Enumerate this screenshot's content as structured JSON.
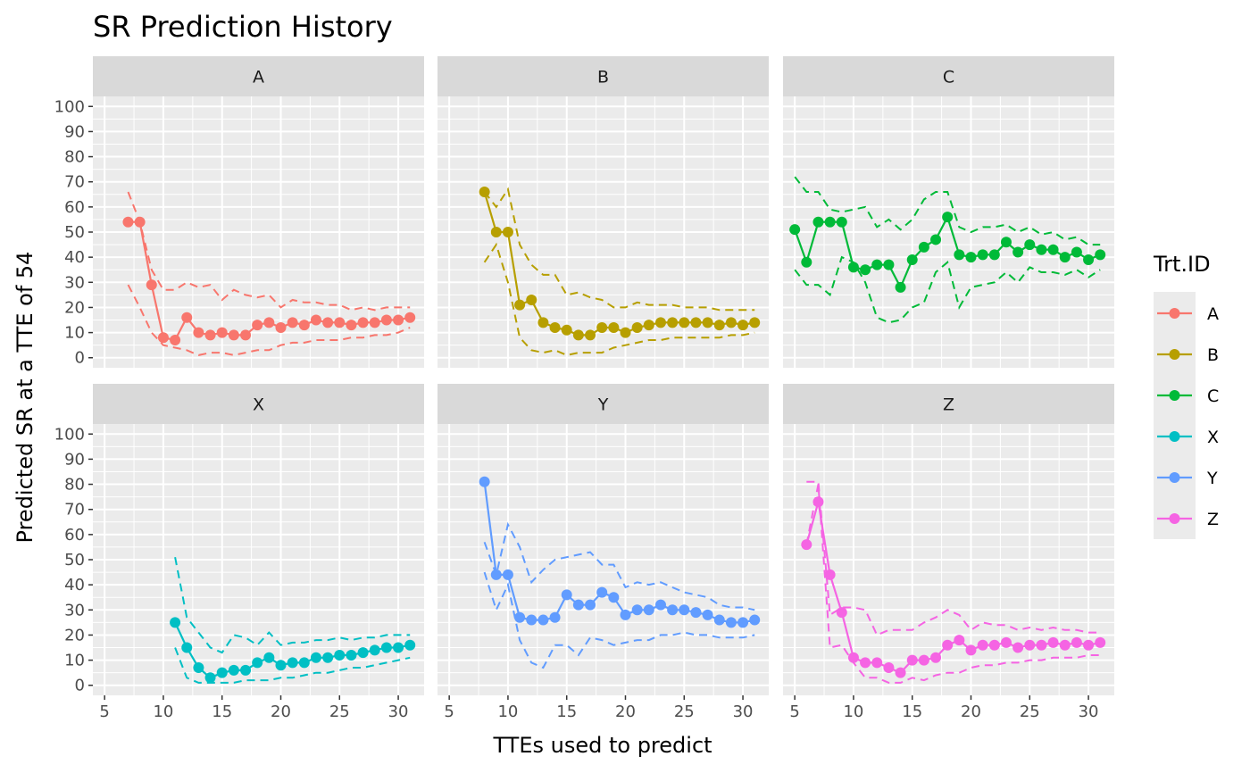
{
  "chart_data": {
    "type": "line",
    "title": "SR Prediction History",
    "xlabel": "TTEs used to predict",
    "ylabel": "Predicted SR at a TTE of 54",
    "xlim": [
      4.0,
      32.2
    ],
    "ylim": [
      -4,
      104
    ],
    "x_ticks": [
      5,
      10,
      15,
      20,
      25,
      30
    ],
    "y_ticks": [
      0,
      10,
      20,
      30,
      40,
      50,
      60,
      70,
      80,
      90,
      100
    ],
    "grid": true,
    "facet_layout": "2 rows x 3 columns",
    "legend": {
      "title": "Trt.ID",
      "placement": "right"
    },
    "facets": [
      {
        "label": "A",
        "color": "#F8766D",
        "x": [
          7,
          8,
          9,
          10,
          11,
          12,
          13,
          14,
          15,
          16,
          17,
          18,
          19,
          20,
          21,
          22,
          23,
          24,
          25,
          26,
          27,
          28,
          29,
          30,
          31
        ],
        "y": [
          54,
          54,
          29,
          8,
          7,
          16,
          10,
          9,
          10,
          9,
          9,
          13,
          14,
          12,
          14,
          13,
          15,
          14,
          14,
          13,
          14,
          14,
          15,
          15,
          16
        ],
        "upper": [
          66,
          54,
          35,
          27,
          27,
          30,
          28,
          29,
          23,
          27,
          25,
          24,
          25,
          20,
          23,
          22,
          22,
          21,
          21,
          19,
          20,
          19,
          20,
          20,
          20
        ],
        "lower": [
          29,
          20,
          10,
          5,
          4,
          3,
          1,
          2,
          2,
          1,
          2,
          3,
          3,
          5,
          6,
          6,
          7,
          7,
          7,
          8,
          8,
          9,
          9,
          10,
          12
        ]
      },
      {
        "label": "B",
        "color": "#B79F00",
        "x": [
          8,
          9,
          10,
          11,
          12,
          13,
          14,
          15,
          16,
          17,
          18,
          19,
          20,
          21,
          22,
          23,
          24,
          25,
          26,
          27,
          28,
          29,
          30,
          31
        ],
        "y": [
          66,
          50,
          50,
          21,
          23,
          14,
          12,
          11,
          9,
          9,
          12,
          12,
          10,
          12,
          13,
          14,
          14,
          14,
          14,
          14,
          13,
          14,
          13,
          14
        ],
        "upper": [
          66,
          60,
          67,
          45,
          37,
          33,
          33,
          25,
          26,
          24,
          23,
          20,
          20,
          22,
          21,
          21,
          21,
          20,
          20,
          20,
          19,
          19,
          19,
          19
        ],
        "lower": [
          38,
          45,
          30,
          8,
          3,
          2,
          3,
          1,
          2,
          2,
          2,
          4,
          5,
          6,
          7,
          7,
          8,
          8,
          8,
          8,
          8,
          9,
          9,
          10
        ]
      },
      {
        "label": "C",
        "color": "#00BA38",
        "x": [
          5,
          6,
          7,
          8,
          9,
          10,
          11,
          12,
          13,
          14,
          15,
          16,
          17,
          18,
          19,
          20,
          21,
          22,
          23,
          24,
          25,
          26,
          27,
          28,
          29,
          30,
          31
        ],
        "y": [
          51,
          38,
          54,
          54,
          54,
          36,
          35,
          37,
          37,
          28,
          39,
          44,
          47,
          56,
          41,
          40,
          41,
          41,
          46,
          42,
          45,
          43,
          43,
          40,
          42,
          39,
          41
        ],
        "upper": [
          72,
          66,
          66,
          59,
          58,
          59,
          60,
          52,
          55,
          51,
          55,
          63,
          66,
          66,
          52,
          50,
          52,
          52,
          53,
          50,
          52,
          49,
          50,
          47,
          48,
          45,
          45
        ],
        "lower": [
          35,
          29,
          29,
          25,
          40,
          38,
          30,
          16,
          14,
          15,
          20,
          22,
          34,
          38,
          20,
          28,
          29,
          30,
          34,
          30,
          36,
          34,
          34,
          33,
          35,
          32,
          35
        ]
      },
      {
        "label": "X",
        "color": "#00BFC4",
        "x": [
          11,
          12,
          13,
          14,
          15,
          16,
          17,
          18,
          19,
          20,
          21,
          22,
          23,
          24,
          25,
          26,
          27,
          28,
          29,
          30,
          31
        ],
        "y": [
          25,
          15,
          7,
          3,
          5,
          6,
          6,
          9,
          11,
          8,
          9,
          9,
          11,
          11,
          12,
          12,
          13,
          14,
          15,
          15,
          16
        ],
        "upper": [
          51,
          27,
          21,
          15,
          13,
          20,
          19,
          16,
          21,
          16,
          17,
          17,
          18,
          18,
          19,
          18,
          19,
          19,
          20,
          20,
          20
        ],
        "lower": [
          15,
          3,
          1,
          1,
          1,
          1,
          2,
          2,
          2,
          3,
          3,
          4,
          5,
          5,
          6,
          7,
          7,
          8,
          9,
          10,
          11
        ]
      },
      {
        "label": "Y",
        "color": "#619CFF",
        "x": [
          8,
          9,
          10,
          11,
          12,
          13,
          14,
          15,
          16,
          17,
          18,
          19,
          20,
          21,
          22,
          23,
          24,
          25,
          26,
          27,
          28,
          29,
          30,
          31
        ],
        "y": [
          81,
          44,
          44,
          27,
          26,
          26,
          27,
          36,
          32,
          32,
          37,
          35,
          28,
          30,
          30,
          32,
          30,
          30,
          29,
          28,
          26,
          25,
          25,
          26
        ],
        "upper": [
          57,
          44,
          64,
          55,
          41,
          46,
          50,
          51,
          52,
          53,
          48,
          48,
          39,
          41,
          40,
          41,
          39,
          37,
          36,
          35,
          32,
          31,
          31,
          30
        ],
        "lower": [
          45,
          30,
          40,
          18,
          9,
          7,
          16,
          16,
          12,
          19,
          18,
          16,
          17,
          18,
          18,
          20,
          20,
          21,
          20,
          20,
          19,
          19,
          19,
          20
        ]
      },
      {
        "label": "Z",
        "color": "#F564E3",
        "x": [
          6,
          7,
          8,
          9,
          10,
          11,
          12,
          13,
          14,
          15,
          16,
          17,
          18,
          19,
          20,
          21,
          22,
          23,
          24,
          25,
          26,
          27,
          28,
          29,
          30,
          31
        ],
        "y": [
          56,
          73,
          44,
          29,
          11,
          9,
          9,
          7,
          5,
          10,
          10,
          11,
          16,
          18,
          14,
          16,
          16,
          17,
          15,
          16,
          16,
          17,
          16,
          17,
          16,
          17
        ],
        "upper": [
          81,
          81,
          28,
          31,
          31,
          30,
          20,
          22,
          22,
          22,
          25,
          27,
          30,
          28,
          22,
          25,
          24,
          24,
          22,
          23,
          22,
          23,
          22,
          22,
          21,
          21
        ],
        "lower": [
          56,
          80,
          15,
          16,
          9,
          3,
          3,
          1,
          1,
          3,
          2,
          4,
          5,
          5,
          7,
          8,
          8,
          9,
          9,
          10,
          10,
          11,
          11,
          11,
          12,
          12
        ]
      }
    ]
  }
}
